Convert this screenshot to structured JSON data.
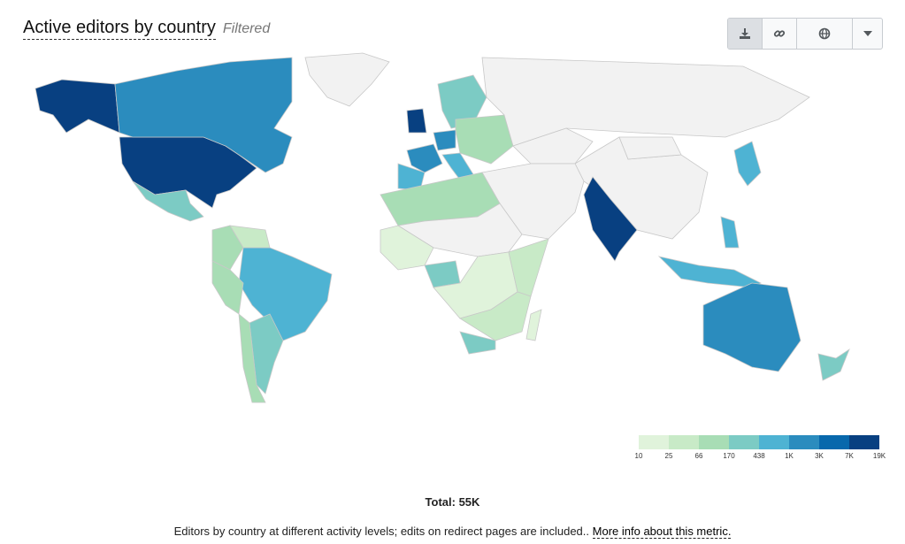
{
  "header": {
    "title": "Active editors by country",
    "badge": "Filtered"
  },
  "toolbar": {
    "buttons": [
      {
        "icon": "download-icon"
      },
      {
        "icon": "link-icon"
      },
      {
        "icon": "globe-icon"
      },
      {
        "icon": "caret-down-icon"
      }
    ]
  },
  "chart_data": {
    "type": "choropleth",
    "scale_type": "log",
    "legend_placement": "bottom-right",
    "legend_ticks": [
      "10",
      "25",
      "66",
      "170",
      "438",
      "1K",
      "3K",
      "7K",
      "19K"
    ],
    "colors": [
      "#e0f3db",
      "#c8eac7",
      "#a8ddb5",
      "#7ccbc4",
      "#4eb3d3",
      "#2b8cbe",
      "#0868ac",
      "#084081"
    ],
    "no_data_color": "#f2f2f2",
    "countries": [
      {
        "name": "United States",
        "value": 19000
      },
      {
        "name": "Alaska",
        "value": 19000
      },
      {
        "name": "Canada",
        "value": 2000
      },
      {
        "name": "Greenland",
        "value": 0
      },
      {
        "name": "Mexico",
        "value": 300
      },
      {
        "name": "Brazil",
        "value": 800
      },
      {
        "name": "Argentina",
        "value": 200
      },
      {
        "name": "Colombia",
        "value": 120
      },
      {
        "name": "Peru",
        "value": 100
      },
      {
        "name": "Chile",
        "value": 150
      },
      {
        "name": "Venezuela",
        "value": 60
      },
      {
        "name": "United Kingdom",
        "value": 7000
      },
      {
        "name": "France",
        "value": 1000
      },
      {
        "name": "Germany",
        "value": 2000
      },
      {
        "name": "Spain",
        "value": 900
      },
      {
        "name": "Italy",
        "value": 700
      },
      {
        "name": "Scandinavia",
        "value": 300
      },
      {
        "name": "Eastern Europe",
        "value": 150
      },
      {
        "name": "Russia",
        "value": 0
      },
      {
        "name": "Kazakhstan",
        "value": 0
      },
      {
        "name": "China",
        "value": 0
      },
      {
        "name": "Mongolia",
        "value": 0
      },
      {
        "name": "Middle East",
        "value": 0
      },
      {
        "name": "India",
        "value": 7000
      },
      {
        "name": "Japan",
        "value": 600
      },
      {
        "name": "Indonesia",
        "value": 900
      },
      {
        "name": "Philippines",
        "value": 700
      },
      {
        "name": "Australia",
        "value": 2500
      },
      {
        "name": "New Zealand",
        "value": 300
      },
      {
        "name": "North Africa",
        "value": 80
      },
      {
        "name": "Sahara",
        "value": 0
      },
      {
        "name": "West Africa",
        "value": 15
      },
      {
        "name": "Nigeria",
        "value": 200
      },
      {
        "name": "Central Africa",
        "value": 12
      },
      {
        "name": "East Africa",
        "value": 60
      },
      {
        "name": "Southern Africa",
        "value": 30
      },
      {
        "name": "South Africa",
        "value": 250
      },
      {
        "name": "Madagascar",
        "value": 20
      }
    ]
  },
  "footer": {
    "total_label": "Total: 55K",
    "description": "Editors by country at different activity levels; edits on redirect pages are included..",
    "link_text": "More info about this metric."
  }
}
